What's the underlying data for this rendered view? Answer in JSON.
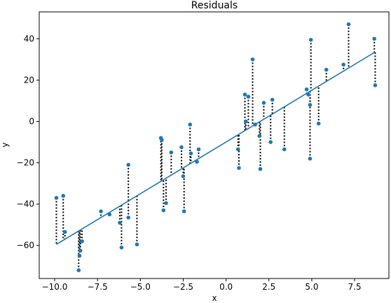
{
  "chart_data": {
    "type": "scatter",
    "title": "Residuals",
    "xlabel": "x",
    "ylabel": "y",
    "xlim": [
      -10.9,
      9.5
    ],
    "ylim": [
      -76,
      53
    ],
    "xticks": [
      -10.0,
      -7.5,
      -5.0,
      -2.5,
      0.0,
      2.5,
      5.0,
      7.5
    ],
    "xtick_labels": [
      "−10.0",
      "−7.5",
      "−5.0",
      "−2.5",
      "0.0",
      "2.5",
      "5.0",
      "7.5"
    ],
    "yticks": [
      -60,
      -40,
      -20,
      0,
      20,
      40
    ],
    "ytick_labels": [
      "−60",
      "−40",
      "−20",
      "0",
      "20",
      "40"
    ],
    "grid": false,
    "colors": {
      "points": "#1f77b4",
      "line": "#1f77b4",
      "residual": "#000000"
    },
    "fit_line": {
      "x": [
        -9.9,
        8.7
      ],
      "y": [
        -59.5,
        33.6
      ]
    },
    "points": [
      {
        "x": -9.9,
        "y": -37
      },
      {
        "x": -9.5,
        "y": -36
      },
      {
        "x": -9.4,
        "y": -53.5
      },
      {
        "x": -8.6,
        "y": -72
      },
      {
        "x": -8.55,
        "y": -65
      },
      {
        "x": -8.5,
        "y": -62.5
      },
      {
        "x": -8.4,
        "y": -58
      },
      {
        "x": -7.3,
        "y": -43.5
      },
      {
        "x": -6.8,
        "y": -45
      },
      {
        "x": -6.2,
        "y": -49
      },
      {
        "x": -6.1,
        "y": -61
      },
      {
        "x": -5.7,
        "y": -21
      },
      {
        "x": -5.7,
        "y": -46.5
      },
      {
        "x": -5.2,
        "y": -59.5
      },
      {
        "x": -3.8,
        "y": -8
      },
      {
        "x": -3.75,
        "y": -9
      },
      {
        "x": -3.65,
        "y": -43
      },
      {
        "x": -3.5,
        "y": -39.5
      },
      {
        "x": -3.2,
        "y": -15
      },
      {
        "x": -2.6,
        "y": -12.5
      },
      {
        "x": -2.5,
        "y": -26.5
      },
      {
        "x": -2.45,
        "y": -43.5
      },
      {
        "x": -2.1,
        "y": -1.5
      },
      {
        "x": -2.05,
        "y": -15.5
      },
      {
        "x": -1.7,
        "y": -19.5
      },
      {
        "x": -1.6,
        "y": -13.5
      },
      {
        "x": 0.7,
        "y": -13.5
      },
      {
        "x": 0.75,
        "y": -22.5
      },
      {
        "x": 1.1,
        "y": 13
      },
      {
        "x": 1.15,
        "y": 0
      },
      {
        "x": 1.3,
        "y": 12
      },
      {
        "x": 1.55,
        "y": 30
      },
      {
        "x": 1.7,
        "y": -1.5
      },
      {
        "x": 1.95,
        "y": -7
      },
      {
        "x": 2.0,
        "y": -23
      },
      {
        "x": 2.2,
        "y": 9
      },
      {
        "x": 2.6,
        "y": -10
      },
      {
        "x": 2.7,
        "y": 10.5
      },
      {
        "x": 3.4,
        "y": -13.5
      },
      {
        "x": 4.7,
        "y": 15.5
      },
      {
        "x": 4.8,
        "y": 13
      },
      {
        "x": 4.9,
        "y": 8
      },
      {
        "x": 4.9,
        "y": -18
      },
      {
        "x": 4.95,
        "y": 39.5
      },
      {
        "x": 5.4,
        "y": -1
      },
      {
        "x": 5.85,
        "y": 25
      },
      {
        "x": 6.85,
        "y": 27.5
      },
      {
        "x": 7.15,
        "y": 47
      },
      {
        "x": 8.65,
        "y": 40
      },
      {
        "x": 8.7,
        "y": 17.5
      }
    ]
  }
}
